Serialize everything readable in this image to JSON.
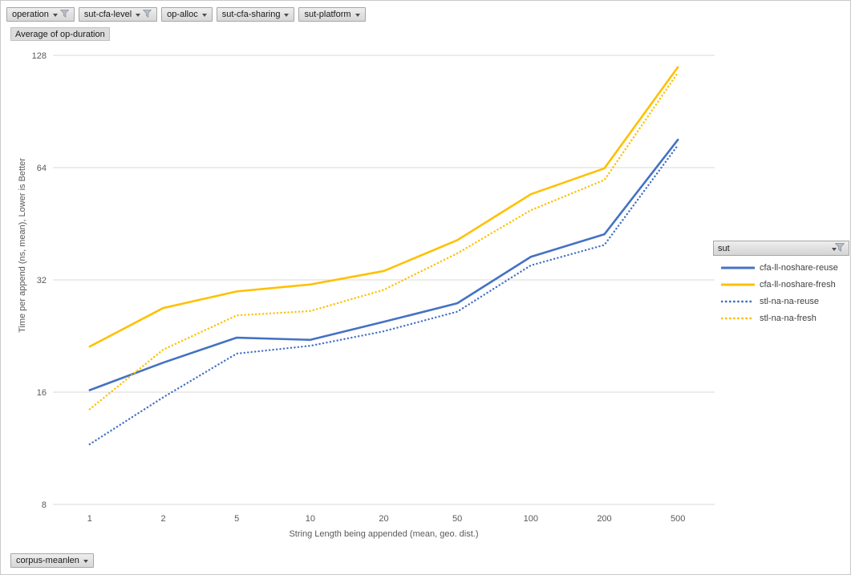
{
  "pivot_fields": {
    "top_buttons": [
      {
        "label": "operation",
        "filtered": true
      },
      {
        "label": "sut-cfa-level",
        "filtered": true
      },
      {
        "label": "op-alloc",
        "filtered": false
      },
      {
        "label": "sut-cfa-sharing",
        "filtered": false
      },
      {
        "label": "sut-platform",
        "filtered": false
      }
    ],
    "value_button_label": "Average of op-duration",
    "legend_button": {
      "label": "sut",
      "filtered": true
    },
    "bottom_button": {
      "label": "corpus-meanlen",
      "filtered": false
    }
  },
  "chart_data": {
    "type": "line",
    "title": "",
    "x_axis": {
      "title": "String Length being appended (mean, geo. dist.)",
      "categories": [
        "1",
        "2",
        "5",
        "10",
        "20",
        "50",
        "100",
        "200",
        "500"
      ]
    },
    "y_axis": {
      "title": "Time per append (ns, mean),  Lower is Better",
      "scale": "log2",
      "min": 8,
      "max": 128,
      "ticks": [
        128,
        64,
        32,
        16,
        8
      ]
    },
    "grid": "horizontal-only",
    "legend_position": "right",
    "series": [
      {
        "name": "cfa-ll-noshare-reuse",
        "color": "#4472C4",
        "style": "solid",
        "values": [
          16.2,
          19.2,
          22.4,
          22.1,
          24.7,
          27.7,
          36.9,
          42.4,
          76.0
        ]
      },
      {
        "name": "cfa-ll-noshare-fresh",
        "color": "#FFC000",
        "style": "solid",
        "values": [
          21.2,
          26.9,
          29.8,
          31.1,
          33.8,
          40.9,
          54.3,
          63.7,
          119.0
        ]
      },
      {
        "name": "stl-na-na-reuse",
        "color": "#4472C4",
        "style": "dotted",
        "values": [
          11.6,
          15.5,
          20.3,
          21.3,
          23.3,
          26.3,
          35.0,
          39.7,
          73.5
        ]
      },
      {
        "name": "stl-na-na-fresh",
        "color": "#FFC000",
        "style": "dotted",
        "values": [
          14.4,
          20.8,
          25.7,
          26.4,
          30.1,
          37.7,
          49.2,
          59.3,
          115.0
        ]
      }
    ]
  },
  "colors": {
    "gridline": "#d9d9d9",
    "axis_text": "#595959",
    "legend_text": "#404040",
    "series_blue": "#4472C4",
    "series_gold": "#FFC000"
  }
}
